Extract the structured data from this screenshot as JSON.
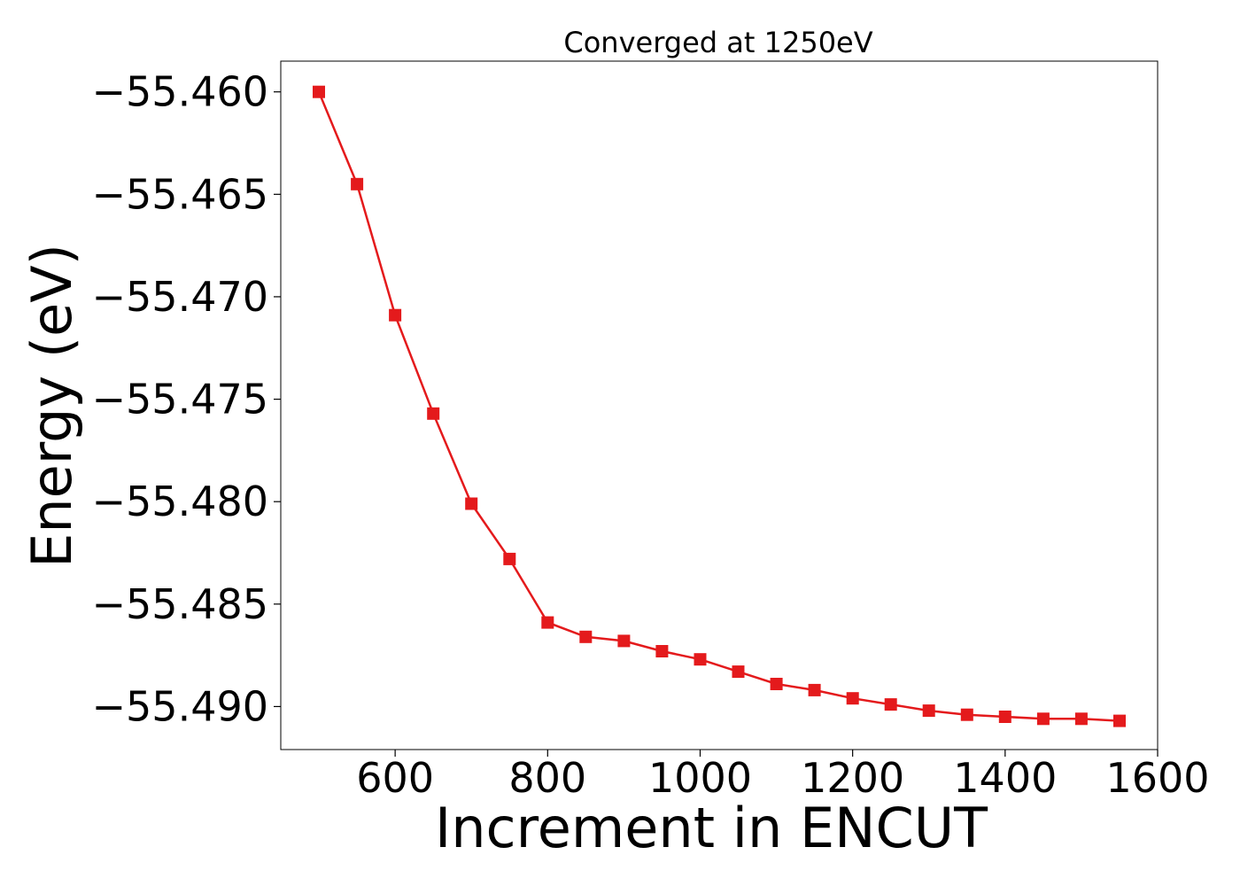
{
  "chart_data": {
    "type": "line",
    "title": "Converged at 1250eV",
    "xlabel": "Increment in ENCUT",
    "ylabel": "Energy (eV)",
    "xlim": [
      450,
      1600
    ],
    "ylim": [
      -55.4921,
      -55.4585
    ],
    "xticks": [
      600,
      800,
      1000,
      1200,
      1400,
      1600
    ],
    "xtick_labels": [
      "600",
      "800",
      "1000",
      "1200",
      "1400",
      "1600"
    ],
    "yticks": [
      -55.46,
      -55.465,
      -55.47,
      -55.475,
      -55.48,
      -55.485,
      -55.49
    ],
    "ytick_labels": [
      "−55.460",
      "−55.465",
      "−55.470",
      "−55.475",
      "−55.480",
      "−55.485",
      "−55.490"
    ],
    "grid": false,
    "marker": "square",
    "color": "#e41a1c",
    "x": [
      500,
      550,
      600,
      650,
      700,
      750,
      800,
      850,
      900,
      950,
      1000,
      1050,
      1100,
      1150,
      1200,
      1250,
      1300,
      1350,
      1400,
      1450,
      1500,
      1550
    ],
    "y": [
      -55.46,
      -55.4645,
      -55.4709,
      -55.4757,
      -55.4801,
      -55.4828,
      -55.4859,
      -55.4866,
      -55.4868,
      -55.4873,
      -55.4877,
      -55.4883,
      -55.4889,
      -55.4892,
      -55.4896,
      -55.4899,
      -55.4902,
      -55.4904,
      -55.4905,
      -55.4906,
      -55.4906,
      -55.4907
    ]
  }
}
